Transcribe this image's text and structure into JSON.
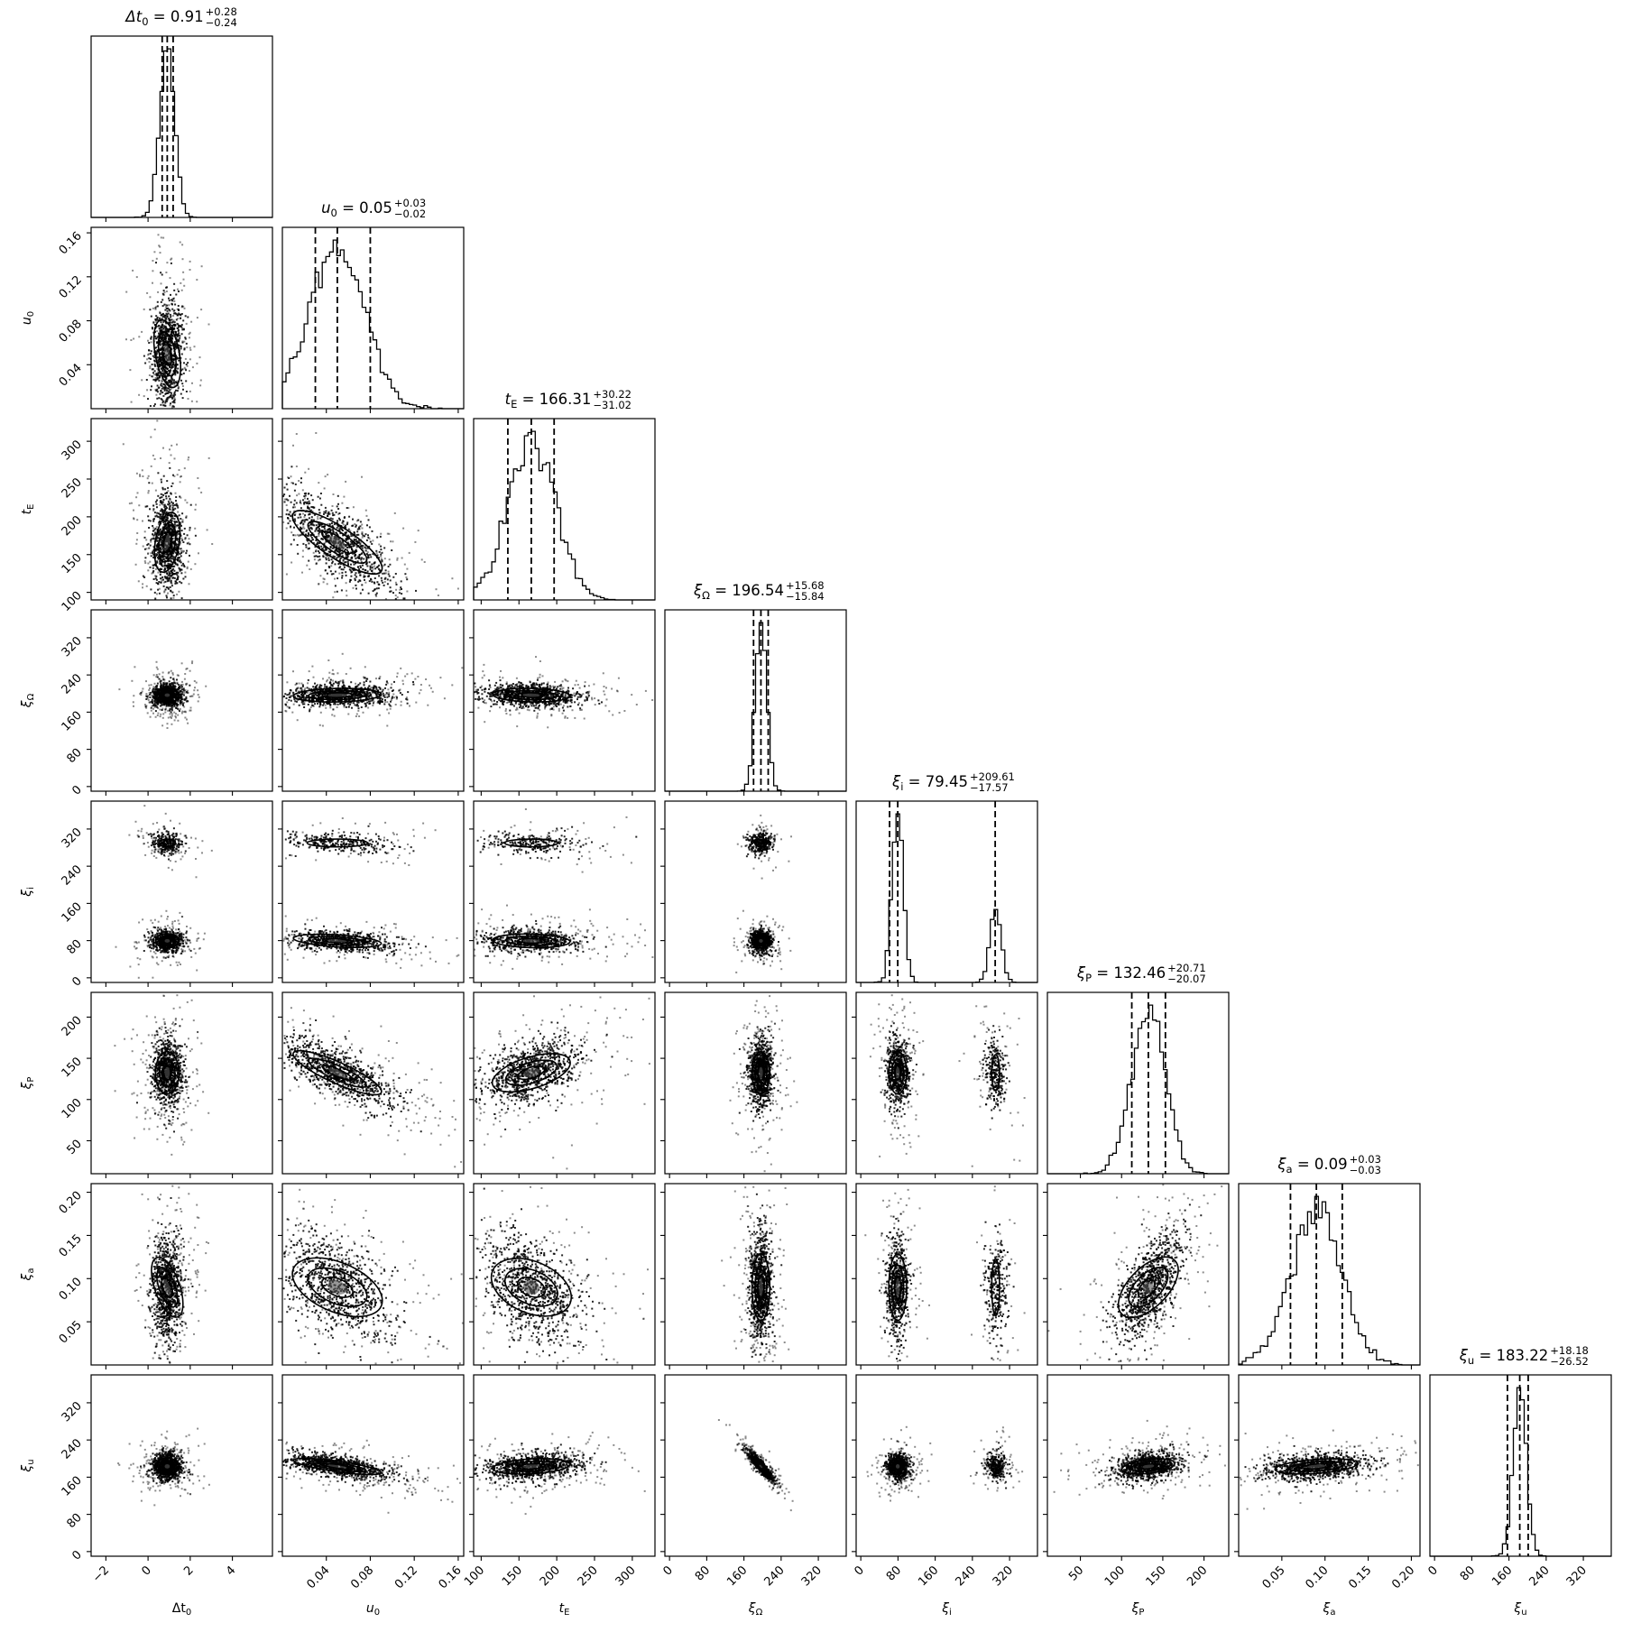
{
  "chart_data": {
    "type": "corner",
    "title": "",
    "params": [
      {
        "key": "dt0",
        "symbol": "Δt",
        "sub": "0",
        "value": "0.91",
        "plus": "+0.28",
        "minus": "−0.24",
        "median": 0.91,
        "lo": 0.67,
        "hi": 1.19,
        "sigma": 0.35,
        "min": -2.7,
        "max": 5.9,
        "ticks": [
          -2,
          0,
          2,
          4
        ],
        "tick_labels": [
          "−2",
          "0",
          "2",
          "4"
        ]
      },
      {
        "key": "u0",
        "symbol": "u",
        "sub": "0",
        "value": "0.05",
        "plus": "+0.03",
        "minus": "−0.02",
        "median": 0.05,
        "lo": 0.03,
        "hi": 0.08,
        "sigma": 0.025,
        "min": 0.0,
        "max": 0.165,
        "ticks": [
          0.04,
          0.08,
          0.12,
          0.16
        ],
        "tick_labels": [
          "0.04",
          "0.08",
          "0.12",
          "0.16"
        ]
      },
      {
        "key": "tE",
        "symbol": "t",
        "sub": "E",
        "value": "166.31",
        "plus": "+30.22",
        "minus": "−31.02",
        "median": 166.31,
        "lo": 135.29,
        "hi": 196.53,
        "sigma": 32,
        "min": 90,
        "max": 330,
        "ticks": [
          100,
          150,
          200,
          250,
          300
        ],
        "tick_labels": [
          "100",
          "150",
          "200",
          "250",
          "300"
        ]
      },
      {
        "key": "xiOmega",
        "symbol": "ξ",
        "sub": "Ω",
        "value": "196.54",
        "plus": "+15.68",
        "minus": "−15.84",
        "median": 196.54,
        "lo": 180.7,
        "hi": 212.22,
        "sigma": 12,
        "min": -10,
        "max": 380,
        "ticks": [
          0,
          80,
          160,
          240,
          320
        ],
        "tick_labels": [
          "0",
          "80",
          "160",
          "240",
          "320"
        ]
      },
      {
        "key": "xii",
        "symbol": "ξ",
        "sub": "i",
        "value": "79.45",
        "plus": "+209.61",
        "minus": "−17.57",
        "median": 79.45,
        "lo": 61.88,
        "hi": 289.06,
        "sigma": 12,
        "min": -10,
        "max": 380,
        "ticks": [
          0,
          80,
          160,
          240,
          320
        ],
        "tick_labels": [
          "0",
          "80",
          "160",
          "240",
          "320"
        ]
      },
      {
        "key": "xiP",
        "symbol": "ξ",
        "sub": "P",
        "value": "132.46",
        "plus": "+20.71",
        "minus": "−20.07",
        "median": 132.46,
        "lo": 112.39,
        "hi": 153.17,
        "sigma": 20,
        "min": 10,
        "max": 230,
        "ticks": [
          50,
          100,
          150,
          200
        ],
        "tick_labels": [
          "50",
          "100",
          "150",
          "200"
        ]
      },
      {
        "key": "xia",
        "symbol": "ξ",
        "sub": "a",
        "value": "0.09",
        "plus": "+0.03",
        "minus": "−0.03",
        "median": 0.09,
        "lo": 0.06,
        "hi": 0.12,
        "sigma": 0.03,
        "min": 0.0,
        "max": 0.21,
        "ticks": [
          0.05,
          0.1,
          0.15,
          0.2
        ],
        "tick_labels": [
          "0.05",
          "0.10",
          "0.15",
          "0.20"
        ]
      },
      {
        "key": "xiu",
        "symbol": "ξ",
        "sub": "u",
        "value": "183.22",
        "plus": "+18.18",
        "minus": "−26.52",
        "median": 183.22,
        "lo": 156.7,
        "hi": 201.4,
        "sigma": 14,
        "min": -10,
        "max": 380,
        "ticks": [
          0,
          80,
          160,
          240,
          320
        ],
        "tick_labels": [
          "0",
          "80",
          "160",
          "240",
          "320"
        ]
      }
    ],
    "correlations": [
      [
        0,
        0
      ],
      [
        0.05
      ],
      [
        -0.05,
        -0.75
      ],
      [
        0,
        0.1,
        -0.1
      ],
      [
        0,
        -0.3,
        -0.1,
        0
      ],
      [
        0,
        -0.75,
        0.45,
        0,
        0
      ],
      [
        0.1,
        -0.45,
        -0.4,
        0,
        0,
        0.65
      ],
      [
        0,
        -0.6,
        0.2,
        -0.9,
        0,
        0.3,
        0.3
      ]
    ],
    "secondary_modes": {
      "xii": 290
    },
    "xlabel": "",
    "ylabel": ""
  }
}
